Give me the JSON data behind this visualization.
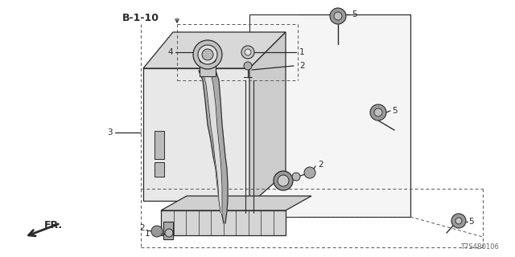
{
  "bg_color": "#ffffff",
  "part_label": "B-1-10",
  "doc_number": "T7S4B0106",
  "line_color": "#2a2a2a",
  "dash_color": "#555555",
  "gray_fill": "#cccccc",
  "dark_fill": "#888888",
  "mid_fill": "#aaaaaa",
  "figsize": [
    6.4,
    3.2
  ],
  "dpi": 100,
  "text_fs": 7.5,
  "bold_fs": 9.0
}
